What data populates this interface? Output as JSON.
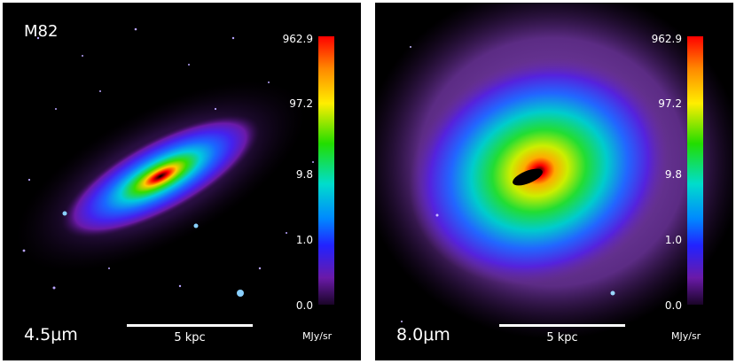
{
  "galaxy_name": "M82",
  "scale_label": "5 kpc",
  "panels": [
    {
      "band": "4.5μm",
      "colorbar": {
        "ticks": [
          "962.9",
          "97.2",
          "9.8",
          "1.0",
          "0.0"
        ],
        "unit": "MJy/sr"
      }
    },
    {
      "band": "8.0μm",
      "colorbar": {
        "ticks": [
          "962.9",
          "97.2",
          "9.8",
          "1.0",
          "0.0"
        ],
        "unit": "MJy/sr"
      }
    }
  ],
  "colors": {
    "background": "#000000",
    "text": "#ffffff"
  }
}
